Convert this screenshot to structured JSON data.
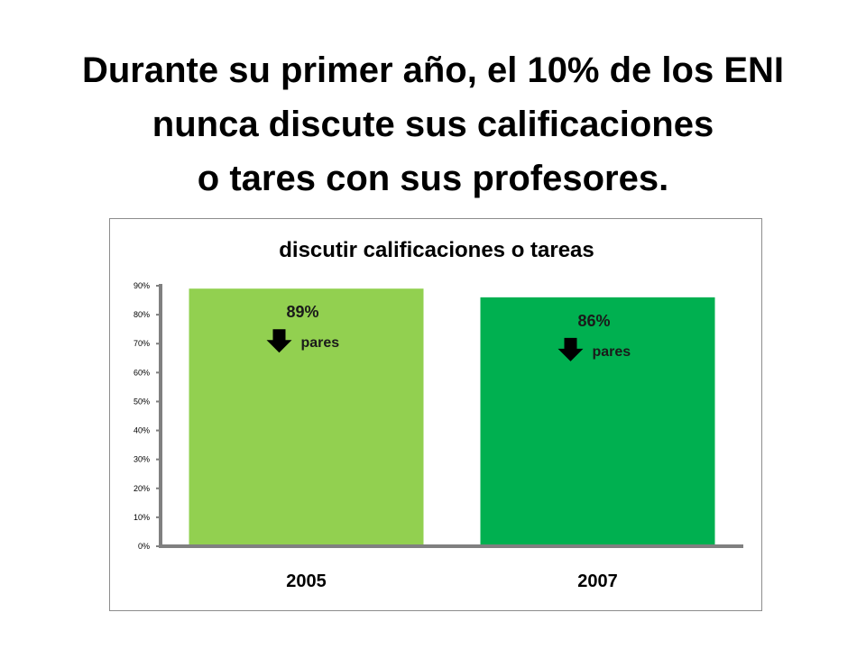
{
  "slide": {
    "title_lines": [
      "Durante su primer año, el 10% de los ENI",
      "nunca discute sus calificaciones",
      "o tares con sus profesores."
    ]
  },
  "chart_data": {
    "type": "bar",
    "title": "discutir calificaciones o tareas",
    "categories": [
      "2005",
      "2007"
    ],
    "values": [
      0.89,
      0.86
    ],
    "data_labels": [
      "89%",
      "86%"
    ],
    "annotations": [
      "pares",
      "pares"
    ],
    "annotation_icon": "down-arrow-icon",
    "ylim": [
      0,
      0.9
    ],
    "yticks": [
      "0%",
      "10%",
      "20%",
      "30%",
      "40%",
      "50%",
      "60%",
      "70%",
      "80%",
      "90%"
    ],
    "grid": false,
    "legend": "none",
    "colors": [
      "#92d050",
      "#00b050"
    ]
  }
}
